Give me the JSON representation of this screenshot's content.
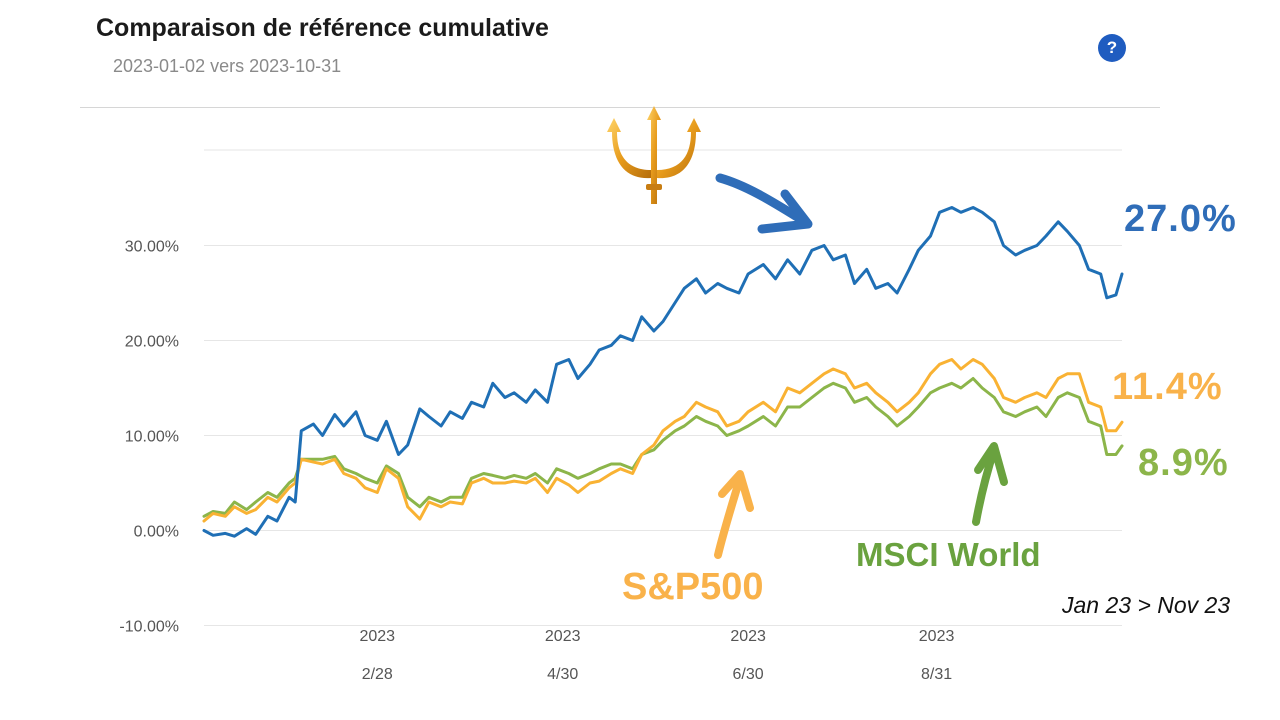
{
  "header": {
    "title": "Comparaison de référence cumulative",
    "subtitle": "2023-01-02 vers 2023-10-31",
    "help_icon": "question-circle-icon"
  },
  "annotations": {
    "blue_value": "27.0%",
    "orange_value": "11.4%",
    "green_value": "8.9%",
    "sp500_label": "S&P500",
    "msci_label": "MSCI World",
    "date_range": "Jan 23 > Nov 23",
    "trident_icon": "trident-icon",
    "blue_arrow_icon": "arrow-down-right-icon",
    "orange_arrow_icon": "arrow-up-icon",
    "green_arrow_icon": "arrow-up-icon"
  },
  "colors": {
    "blue": "#1f6fb5",
    "orange": "#f9b233",
    "green": "#8cb54a",
    "grid": "#e6e6e6",
    "axis_text": "#555555"
  },
  "chart_data": {
    "type": "line",
    "title": "Comparaison de référence cumulative",
    "subtitle": "2023-01-02 vers 2023-10-31",
    "x_range": [
      "2023-01-02",
      "2023-10-31"
    ],
    "ylim": [
      -10,
      38
    ],
    "y_ticks": [
      {
        "value": 30,
        "label": "30.00%"
      },
      {
        "value": 20,
        "label": "20.00%"
      },
      {
        "value": 10,
        "label": "10.00%"
      },
      {
        "value": 0,
        "label": "0.00%"
      },
      {
        "value": -10,
        "label": "-10.00%"
      }
    ],
    "x_ticks": [
      {
        "date": "2023-02-28",
        "year": "2023",
        "label": "2/28"
      },
      {
        "date": "2023-04-30",
        "year": "2023",
        "label": "4/30"
      },
      {
        "date": "2023-06-30",
        "year": "2023",
        "label": "6/30"
      },
      {
        "date": "2023-08-31",
        "year": "2023",
        "label": "8/31"
      }
    ],
    "grid": true,
    "legend": "none",
    "series": [
      {
        "color": "#1f6fb5",
        "points": [
          [
            "2023-01-02",
            0.0
          ],
          [
            "2023-01-05",
            -0.5
          ],
          [
            "2023-01-09",
            -0.3
          ],
          [
            "2023-01-12",
            -0.6
          ],
          [
            "2023-01-16",
            0.2
          ],
          [
            "2023-01-19",
            -0.4
          ],
          [
            "2023-01-23",
            1.5
          ],
          [
            "2023-01-26",
            1.0
          ],
          [
            "2023-01-30",
            3.5
          ],
          [
            "2023-02-01",
            3.0
          ],
          [
            "2023-02-03",
            10.5
          ],
          [
            "2023-02-07",
            11.2
          ],
          [
            "2023-02-10",
            10.0
          ],
          [
            "2023-02-14",
            12.2
          ],
          [
            "2023-02-17",
            11.0
          ],
          [
            "2023-02-21",
            12.5
          ],
          [
            "2023-02-24",
            10.0
          ],
          [
            "2023-02-28",
            9.5
          ],
          [
            "2023-03-03",
            11.5
          ],
          [
            "2023-03-07",
            8.0
          ],
          [
            "2023-03-10",
            9.0
          ],
          [
            "2023-03-14",
            12.8
          ],
          [
            "2023-03-17",
            12.0
          ],
          [
            "2023-03-21",
            11.0
          ],
          [
            "2023-03-24",
            12.5
          ],
          [
            "2023-03-28",
            11.8
          ],
          [
            "2023-03-31",
            13.5
          ],
          [
            "2023-04-04",
            13.0
          ],
          [
            "2023-04-07",
            15.5
          ],
          [
            "2023-04-11",
            14.0
          ],
          [
            "2023-04-14",
            14.5
          ],
          [
            "2023-04-18",
            13.5
          ],
          [
            "2023-04-21",
            14.8
          ],
          [
            "2023-04-25",
            13.5
          ],
          [
            "2023-04-28",
            17.5
          ],
          [
            "2023-05-02",
            18.0
          ],
          [
            "2023-05-05",
            16.0
          ],
          [
            "2023-05-09",
            17.5
          ],
          [
            "2023-05-12",
            19.0
          ],
          [
            "2023-05-16",
            19.5
          ],
          [
            "2023-05-19",
            20.5
          ],
          [
            "2023-05-23",
            20.0
          ],
          [
            "2023-05-26",
            22.5
          ],
          [
            "2023-05-30",
            21.0
          ],
          [
            "2023-06-02",
            22.0
          ],
          [
            "2023-06-06",
            24.0
          ],
          [
            "2023-06-09",
            25.5
          ],
          [
            "2023-06-13",
            26.5
          ],
          [
            "2023-06-16",
            25.0
          ],
          [
            "2023-06-20",
            26.0
          ],
          [
            "2023-06-23",
            25.5
          ],
          [
            "2023-06-27",
            25.0
          ],
          [
            "2023-06-30",
            27.0
          ],
          [
            "2023-07-05",
            28.0
          ],
          [
            "2023-07-09",
            26.5
          ],
          [
            "2023-07-13",
            28.5
          ],
          [
            "2023-07-17",
            27.0
          ],
          [
            "2023-07-21",
            29.5
          ],
          [
            "2023-07-25",
            30.0
          ],
          [
            "2023-07-28",
            28.5
          ],
          [
            "2023-08-01",
            29.0
          ],
          [
            "2023-08-04",
            26.0
          ],
          [
            "2023-08-08",
            27.5
          ],
          [
            "2023-08-11",
            25.5
          ],
          [
            "2023-08-15",
            26.0
          ],
          [
            "2023-08-18",
            25.0
          ],
          [
            "2023-08-22",
            27.5
          ],
          [
            "2023-08-25",
            29.5
          ],
          [
            "2023-08-29",
            31.0
          ],
          [
            "2023-09-01",
            33.5
          ],
          [
            "2023-09-05",
            34.0
          ],
          [
            "2023-09-08",
            33.5
          ],
          [
            "2023-09-12",
            34.0
          ],
          [
            "2023-09-15",
            33.5
          ],
          [
            "2023-09-19",
            32.5
          ],
          [
            "2023-09-22",
            30.0
          ],
          [
            "2023-09-26",
            29.0
          ],
          [
            "2023-09-29",
            29.5
          ],
          [
            "2023-10-03",
            30.0
          ],
          [
            "2023-10-06",
            31.0
          ],
          [
            "2023-10-10",
            32.5
          ],
          [
            "2023-10-13",
            31.5
          ],
          [
            "2023-10-17",
            30.0
          ],
          [
            "2023-10-20",
            27.5
          ],
          [
            "2023-10-24",
            27.0
          ],
          [
            "2023-10-26",
            24.5
          ],
          [
            "2023-10-29",
            24.8
          ],
          [
            "2023-10-31",
            27.0
          ]
        ]
      },
      {
        "color": "#f9b233",
        "points": [
          [
            "2023-01-02",
            1.0
          ],
          [
            "2023-01-05",
            1.8
          ],
          [
            "2023-01-09",
            1.5
          ],
          [
            "2023-01-12",
            2.5
          ],
          [
            "2023-01-16",
            1.8
          ],
          [
            "2023-01-19",
            2.2
          ],
          [
            "2023-01-23",
            3.5
          ],
          [
            "2023-01-26",
            3.0
          ],
          [
            "2023-01-30",
            4.5
          ],
          [
            "2023-02-01",
            5.0
          ],
          [
            "2023-02-03",
            7.5
          ],
          [
            "2023-02-07",
            7.2
          ],
          [
            "2023-02-10",
            7.0
          ],
          [
            "2023-02-14",
            7.5
          ],
          [
            "2023-02-17",
            6.0
          ],
          [
            "2023-02-21",
            5.5
          ],
          [
            "2023-02-24",
            4.5
          ],
          [
            "2023-02-28",
            4.0
          ],
          [
            "2023-03-03",
            6.5
          ],
          [
            "2023-03-07",
            5.5
          ],
          [
            "2023-03-10",
            2.5
          ],
          [
            "2023-03-14",
            1.2
          ],
          [
            "2023-03-17",
            3.0
          ],
          [
            "2023-03-21",
            2.5
          ],
          [
            "2023-03-24",
            3.0
          ],
          [
            "2023-03-28",
            2.8
          ],
          [
            "2023-03-31",
            5.0
          ],
          [
            "2023-04-04",
            5.5
          ],
          [
            "2023-04-07",
            5.0
          ],
          [
            "2023-04-11",
            5.0
          ],
          [
            "2023-04-14",
            5.2
          ],
          [
            "2023-04-18",
            5.0
          ],
          [
            "2023-04-21",
            5.5
          ],
          [
            "2023-04-25",
            4.0
          ],
          [
            "2023-04-28",
            5.5
          ],
          [
            "2023-05-02",
            4.8
          ],
          [
            "2023-05-05",
            4.0
          ],
          [
            "2023-05-09",
            5.0
          ],
          [
            "2023-05-12",
            5.2
          ],
          [
            "2023-05-16",
            6.0
          ],
          [
            "2023-05-19",
            6.5
          ],
          [
            "2023-05-23",
            6.0
          ],
          [
            "2023-05-26",
            8.0
          ],
          [
            "2023-05-30",
            9.0
          ],
          [
            "2023-06-02",
            10.5
          ],
          [
            "2023-06-06",
            11.5
          ],
          [
            "2023-06-09",
            12.0
          ],
          [
            "2023-06-13",
            13.5
          ],
          [
            "2023-06-16",
            13.0
          ],
          [
            "2023-06-20",
            12.5
          ],
          [
            "2023-06-23",
            11.0
          ],
          [
            "2023-06-27",
            11.5
          ],
          [
            "2023-06-30",
            12.5
          ],
          [
            "2023-07-05",
            13.5
          ],
          [
            "2023-07-09",
            12.5
          ],
          [
            "2023-07-13",
            15.0
          ],
          [
            "2023-07-17",
            14.5
          ],
          [
            "2023-07-21",
            15.5
          ],
          [
            "2023-07-25",
            16.5
          ],
          [
            "2023-07-28",
            17.0
          ],
          [
            "2023-08-01",
            16.5
          ],
          [
            "2023-08-04",
            15.0
          ],
          [
            "2023-08-08",
            15.5
          ],
          [
            "2023-08-11",
            14.5
          ],
          [
            "2023-08-15",
            13.5
          ],
          [
            "2023-08-18",
            12.5
          ],
          [
            "2023-08-22",
            13.5
          ],
          [
            "2023-08-25",
            14.5
          ],
          [
            "2023-08-29",
            16.5
          ],
          [
            "2023-09-01",
            17.5
          ],
          [
            "2023-09-05",
            18.0
          ],
          [
            "2023-09-08",
            17.0
          ],
          [
            "2023-09-12",
            18.0
          ],
          [
            "2023-09-15",
            17.5
          ],
          [
            "2023-09-19",
            16.0
          ],
          [
            "2023-09-22",
            14.0
          ],
          [
            "2023-09-26",
            13.5
          ],
          [
            "2023-09-29",
            14.0
          ],
          [
            "2023-10-03",
            14.5
          ],
          [
            "2023-10-06",
            14.0
          ],
          [
            "2023-10-10",
            16.0
          ],
          [
            "2023-10-13",
            16.5
          ],
          [
            "2023-10-17",
            16.5
          ],
          [
            "2023-10-20",
            13.5
          ],
          [
            "2023-10-24",
            13.0
          ],
          [
            "2023-10-26",
            10.5
          ],
          [
            "2023-10-29",
            10.5
          ],
          [
            "2023-10-31",
            11.4
          ]
        ]
      },
      {
        "color": "#8cb54a",
        "points": [
          [
            "2023-01-02",
            1.5
          ],
          [
            "2023-01-05",
            2.0
          ],
          [
            "2023-01-09",
            1.8
          ],
          [
            "2023-01-12",
            3.0
          ],
          [
            "2023-01-16",
            2.2
          ],
          [
            "2023-01-19",
            3.0
          ],
          [
            "2023-01-23",
            4.0
          ],
          [
            "2023-01-26",
            3.5
          ],
          [
            "2023-01-30",
            5.0
          ],
          [
            "2023-02-01",
            5.5
          ],
          [
            "2023-02-03",
            7.5
          ],
          [
            "2023-02-07",
            7.5
          ],
          [
            "2023-02-10",
            7.5
          ],
          [
            "2023-02-14",
            7.8
          ],
          [
            "2023-02-17",
            6.5
          ],
          [
            "2023-02-21",
            6.0
          ],
          [
            "2023-02-24",
            5.5
          ],
          [
            "2023-02-28",
            5.0
          ],
          [
            "2023-03-03",
            6.8
          ],
          [
            "2023-03-07",
            6.0
          ],
          [
            "2023-03-10",
            3.5
          ],
          [
            "2023-03-14",
            2.5
          ],
          [
            "2023-03-17",
            3.5
          ],
          [
            "2023-03-21",
            3.0
          ],
          [
            "2023-03-24",
            3.5
          ],
          [
            "2023-03-28",
            3.5
          ],
          [
            "2023-03-31",
            5.5
          ],
          [
            "2023-04-04",
            6.0
          ],
          [
            "2023-04-07",
            5.8
          ],
          [
            "2023-04-11",
            5.5
          ],
          [
            "2023-04-14",
            5.8
          ],
          [
            "2023-04-18",
            5.5
          ],
          [
            "2023-04-21",
            6.0
          ],
          [
            "2023-04-25",
            5.0
          ],
          [
            "2023-04-28",
            6.5
          ],
          [
            "2023-05-02",
            6.0
          ],
          [
            "2023-05-05",
            5.5
          ],
          [
            "2023-05-09",
            6.0
          ],
          [
            "2023-05-12",
            6.5
          ],
          [
            "2023-05-16",
            7.0
          ],
          [
            "2023-05-19",
            7.0
          ],
          [
            "2023-05-23",
            6.5
          ],
          [
            "2023-05-26",
            8.0
          ],
          [
            "2023-05-30",
            8.5
          ],
          [
            "2023-06-02",
            9.5
          ],
          [
            "2023-06-06",
            10.5
          ],
          [
            "2023-06-09",
            11.0
          ],
          [
            "2023-06-13",
            12.0
          ],
          [
            "2023-06-16",
            11.5
          ],
          [
            "2023-06-20",
            11.0
          ],
          [
            "2023-06-23",
            10.0
          ],
          [
            "2023-06-27",
            10.5
          ],
          [
            "2023-06-30",
            11.0
          ],
          [
            "2023-07-05",
            12.0
          ],
          [
            "2023-07-09",
            11.0
          ],
          [
            "2023-07-13",
            13.0
          ],
          [
            "2023-07-17",
            13.0
          ],
          [
            "2023-07-21",
            14.0
          ],
          [
            "2023-07-25",
            15.0
          ],
          [
            "2023-07-28",
            15.5
          ],
          [
            "2023-08-01",
            15.0
          ],
          [
            "2023-08-04",
            13.5
          ],
          [
            "2023-08-08",
            14.0
          ],
          [
            "2023-08-11",
            13.0
          ],
          [
            "2023-08-15",
            12.0
          ],
          [
            "2023-08-18",
            11.0
          ],
          [
            "2023-08-22",
            12.0
          ],
          [
            "2023-08-25",
            13.0
          ],
          [
            "2023-08-29",
            14.5
          ],
          [
            "2023-09-01",
            15.0
          ],
          [
            "2023-09-05",
            15.5
          ],
          [
            "2023-09-08",
            15.0
          ],
          [
            "2023-09-12",
            16.0
          ],
          [
            "2023-09-15",
            15.0
          ],
          [
            "2023-09-19",
            14.0
          ],
          [
            "2023-09-22",
            12.5
          ],
          [
            "2023-09-26",
            12.0
          ],
          [
            "2023-09-29",
            12.5
          ],
          [
            "2023-10-03",
            13.0
          ],
          [
            "2023-10-06",
            12.0
          ],
          [
            "2023-10-10",
            14.0
          ],
          [
            "2023-10-13",
            14.5
          ],
          [
            "2023-10-17",
            14.0
          ],
          [
            "2023-10-20",
            11.5
          ],
          [
            "2023-10-24",
            11.0
          ],
          [
            "2023-10-26",
            8.0
          ],
          [
            "2023-10-29",
            8.0
          ],
          [
            "2023-10-31",
            8.9
          ]
        ]
      }
    ]
  }
}
